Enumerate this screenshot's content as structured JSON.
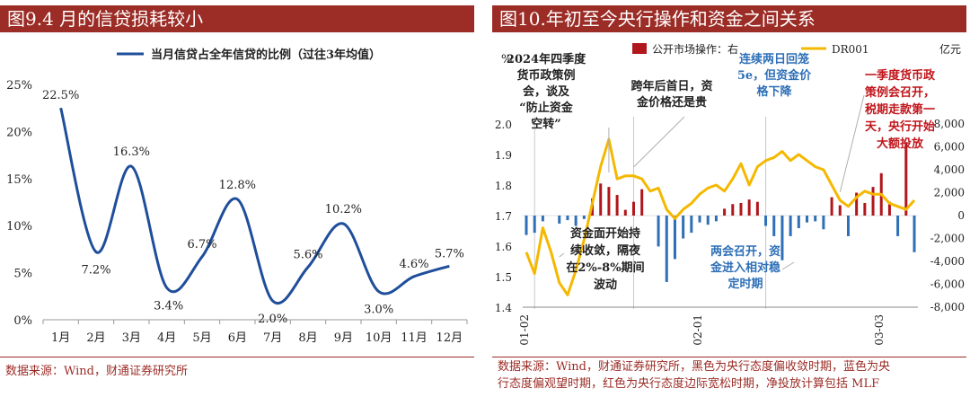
{
  "left": {
    "title": "图9.4 月的信贷损耗较小",
    "source": "数据来源：Wind，财通证券研究所",
    "chart_data": {
      "type": "line",
      "title": "",
      "legend": "当月信贷占全年信贷的比例（过往3年均值）",
      "categories": [
        "1月",
        "2月",
        "3月",
        "4月",
        "5月",
        "6月",
        "7月",
        "8月",
        "9月",
        "10月",
        "11月",
        "12月"
      ],
      "values": [
        22.5,
        7.2,
        16.3,
        3.4,
        6.7,
        12.8,
        2.0,
        5.6,
        10.2,
        3.0,
        4.6,
        5.7
      ],
      "data_labels": [
        "22.5%",
        "7.2%",
        "16.3%",
        "3.4%",
        "6.7%",
        "12.8%",
        "2.0%",
        "5.6%",
        "10.2%",
        "3.0%",
        "4.6%",
        "5.7%"
      ],
      "ylim": [
        0,
        25
      ],
      "yticks": [
        "0%",
        "5%",
        "10%",
        "15%",
        "20%",
        "25%"
      ],
      "color": "#1f4e9a"
    }
  },
  "right": {
    "title": "图10.年初至今央行操作和资金之间关系",
    "source_line1": "数据来源：Wind，财通证券研究所，黑色为央行态度偏收敛时期，蓝色为央",
    "source_line2": "行态度偏观望时期，红色为央行态度边际宽松时期，净投放计算包括 MLF",
    "chart_data": {
      "type": "bar+line",
      "legend": {
        "bar": "公开市场操作：右",
        "line": "DR001"
      },
      "left_unit": "%",
      "right_unit": "亿元",
      "left_ylim": [
        1.4,
        2.0
      ],
      "left_yticks": [
        "1.4",
        "1.5",
        "1.6",
        "1.7",
        "1.8",
        "1.9",
        "2.0"
      ],
      "right_ylim": [
        -8000,
        8000
      ],
      "right_yticks": [
        "-8,000",
        "-6,000",
        "-4,000",
        "-2,000",
        "0",
        "2,000",
        "4,000",
        "6,000",
        "8,000"
      ],
      "xticks": [
        "01-02",
        "02-01",
        "03-03"
      ],
      "n_days": 48,
      "dr001": [
        1.58,
        1.51,
        1.66,
        1.58,
        1.48,
        1.44,
        1.52,
        1.62,
        1.74,
        1.86,
        1.95,
        1.82,
        1.83,
        1.83,
        1.82,
        1.78,
        1.79,
        1.72,
        1.69,
        1.72,
        1.74,
        1.77,
        1.79,
        1.8,
        1.78,
        1.82,
        1.87,
        1.8,
        1.86,
        1.88,
        1.89,
        1.91,
        1.88,
        1.9,
        1.88,
        1.86,
        1.85,
        1.8,
        1.75,
        1.73,
        1.76,
        1.78,
        1.77,
        1.77,
        1.74,
        1.73,
        1.72,
        1.75
      ],
      "omo": [
        -1700,
        -1500,
        -500,
        0,
        -700,
        -400,
        -900,
        -300,
        1500,
        2800,
        2500,
        1800,
        500,
        1200,
        2300,
        0,
        -2700,
        -5800,
        -3800,
        -2000,
        -1500,
        -600,
        -800,
        -500,
        600,
        1000,
        1100,
        1400,
        1200,
        -900,
        -1800,
        -3900,
        -1800,
        -1100,
        -600,
        -500,
        -1200,
        1600,
        900,
        -1800,
        2000,
        1100,
        2500,
        3700,
        1200,
        -1800,
        6400,
        -3200
      ],
      "omo_colors": [
        "#2e6fb7",
        "#2e6fb7",
        "#2e6fb7",
        "#2e6fb7",
        "#2e6fb7",
        "#2e6fb7",
        "#2e6fb7",
        "#2e6fb7",
        "#b0161c",
        "#b0161c",
        "#b0161c",
        "#b0161c",
        "#b0161c",
        "#b0161c",
        "#b0161c",
        "#b0161c",
        "#2e6fb7",
        "#2e6fb7",
        "#2e6fb7",
        "#2e6fb7",
        "#2e6fb7",
        "#2e6fb7",
        "#2e6fb7",
        "#2e6fb7",
        "#b0161c",
        "#b0161c",
        "#b0161c",
        "#b0161c",
        "#b0161c",
        "#2e6fb7",
        "#2e6fb7",
        "#2e6fb7",
        "#2e6fb7",
        "#2e6fb7",
        "#2e6fb7",
        "#2e6fb7",
        "#2e6fb7",
        "#b0161c",
        "#b0161c",
        "#2e6fb7",
        "#b0161c",
        "#b0161c",
        "#b0161c",
        "#b0161c",
        "#b0161c",
        "#2e6fb7",
        "#b0161c",
        "#2e6fb7"
      ],
      "annotations": [
        {
          "lines": [
            "2024年四季度",
            "货币政策例",
            "会，谈及",
            "“防止资金",
            "空转”"
          ],
          "color": "#222222"
        },
        {
          "lines": [
            "跨年后首日，资",
            "金价格还是贵"
          ],
          "color": "#222222"
        },
        {
          "lines": [
            "连续两日回笼",
            "5e，但资金价",
            "格下降"
          ],
          "color": "#2e6fb7"
        },
        {
          "lines": [
            "一季度货币政",
            "策例会召开，",
            "税期走款第一",
            "天，央行开始",
            "大额投放"
          ],
          "color": "#c0151b"
        },
        {
          "lines": [
            "资金面开始持",
            "续收敛，隔夜",
            "在2%-8%期间",
            "波动"
          ],
          "color": "#222222"
        },
        {
          "lines": [
            "两会召开，资",
            "金进入相对稳",
            "定时期"
          ],
          "color": "#2e6fb7"
        }
      ]
    }
  }
}
